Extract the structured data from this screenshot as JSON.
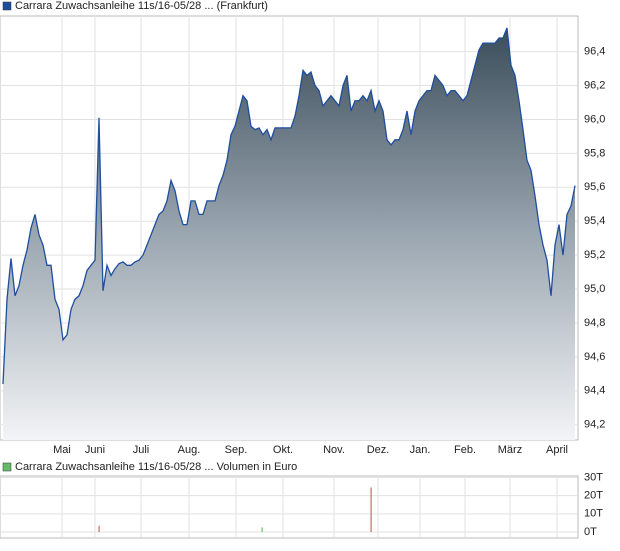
{
  "chart_data": [
    {
      "type": "area-line",
      "title": "Carrara Zuwachsanleihe 11s/16-05/28 ... (Frankfurt)",
      "color": "#1f4e9c",
      "legend_color": "#1f4e9c",
      "grid": true,
      "xlim": [
        0,
        143
      ],
      "xticks": [
        {
          "value": 14.75,
          "label": "Mai"
        },
        {
          "value": 23,
          "label": "Juni"
        },
        {
          "value": 34.5,
          "label": "Juli"
        },
        {
          "value": 46.5,
          "label": "Aug."
        },
        {
          "value": 58.25,
          "label": "Sep."
        },
        {
          "value": 70,
          "label": "Okt."
        },
        {
          "value": 82.75,
          "label": "Nov."
        },
        {
          "value": 93.75,
          "label": "Dez."
        },
        {
          "value": 104.25,
          "label": "Jan."
        },
        {
          "value": 115.5,
          "label": "Feb."
        },
        {
          "value": 126.75,
          "label": "März"
        },
        {
          "value": 138.5,
          "label": "April"
        }
      ],
      "ylim": [
        94.11,
        96.61
      ],
      "yticks": [
        {
          "value": 94.2,
          "label": "94,2"
        },
        {
          "value": 94.4,
          "label": "94,4"
        },
        {
          "value": 94.6,
          "label": "94,6"
        },
        {
          "value": 94.8,
          "label": "94,8"
        },
        {
          "value": 95.0,
          "label": "95,0"
        },
        {
          "value": 95.2,
          "label": "95,2"
        },
        {
          "value": 95.4,
          "label": "95,4"
        },
        {
          "value": 95.6,
          "label": "95,6"
        },
        {
          "value": 95.8,
          "label": "95,8"
        },
        {
          "value": 96.0,
          "label": "96,0"
        },
        {
          "value": 96.2,
          "label": "96,2"
        },
        {
          "value": 96.4,
          "label": "96,4"
        }
      ],
      "values": [
        94.44,
        94.94,
        95.18,
        94.96,
        95.02,
        95.14,
        95.23,
        95.36,
        95.44,
        95.32,
        95.26,
        95.14,
        95.14,
        94.94,
        94.88,
        94.7,
        94.73,
        94.88,
        94.94,
        94.96,
        95.02,
        95.11,
        95.14,
        95.17,
        96.01,
        94.99,
        95.14,
        95.08,
        95.12,
        95.15,
        95.16,
        95.14,
        95.14,
        95.16,
        95.17,
        95.2,
        95.26,
        95.32,
        95.38,
        95.44,
        95.46,
        95.52,
        95.64,
        95.58,
        95.46,
        95.38,
        95.38,
        95.52,
        95.52,
        95.44,
        95.44,
        95.52,
        95.52,
        95.52,
        95.61,
        95.67,
        95.76,
        95.91,
        95.96,
        96.05,
        96.14,
        96.11,
        95.96,
        95.94,
        95.95,
        95.91,
        95.94,
        95.88,
        95.95,
        95.95,
        95.95,
        95.95,
        95.95,
        96.02,
        96.14,
        96.29,
        96.26,
        96.28,
        96.2,
        96.17,
        96.08,
        96.11,
        96.14,
        96.11,
        96.08,
        96.2,
        96.26,
        96.05,
        96.11,
        96.11,
        96.14,
        96.11,
        96.17,
        96.05,
        96.11,
        96.05,
        95.88,
        95.85,
        95.88,
        95.88,
        95.94,
        96.05,
        95.91,
        96.05,
        96.11,
        96.14,
        96.17,
        96.17,
        96.26,
        96.23,
        96.2,
        96.14,
        96.17,
        96.17,
        96.14,
        96.11,
        96.14,
        96.23,
        96.32,
        96.41,
        96.45,
        96.45,
        96.45,
        96.45,
        96.48,
        96.48,
        96.54,
        96.32,
        96.26,
        96.11,
        95.94,
        95.76,
        95.7,
        95.55,
        95.38,
        95.26,
        95.17,
        94.96,
        95.26,
        95.38,
        95.2,
        95.44,
        95.49,
        95.61
      ]
    },
    {
      "type": "bar",
      "title": "Carrara Zuwachsanleihe 11s/16-05/28 ... Volumen in Euro",
      "legend_color": "#66bb66",
      "grid": true,
      "xlim": [
        0,
        143
      ],
      "x": [
        24,
        64.75,
        92
      ],
      "values": [
        3.5,
        2.5,
        24.5
      ],
      "colors": [
        "#cc6666",
        "#66bb66",
        "#cc6666"
      ],
      "ylim": [
        0,
        33
      ],
      "yticks": [
        {
          "value": 0,
          "label": "0T"
        },
        {
          "value": 10,
          "label": "10T"
        },
        {
          "value": 20,
          "label": "20T"
        },
        {
          "value": 30,
          "label": "30T"
        }
      ]
    }
  ]
}
